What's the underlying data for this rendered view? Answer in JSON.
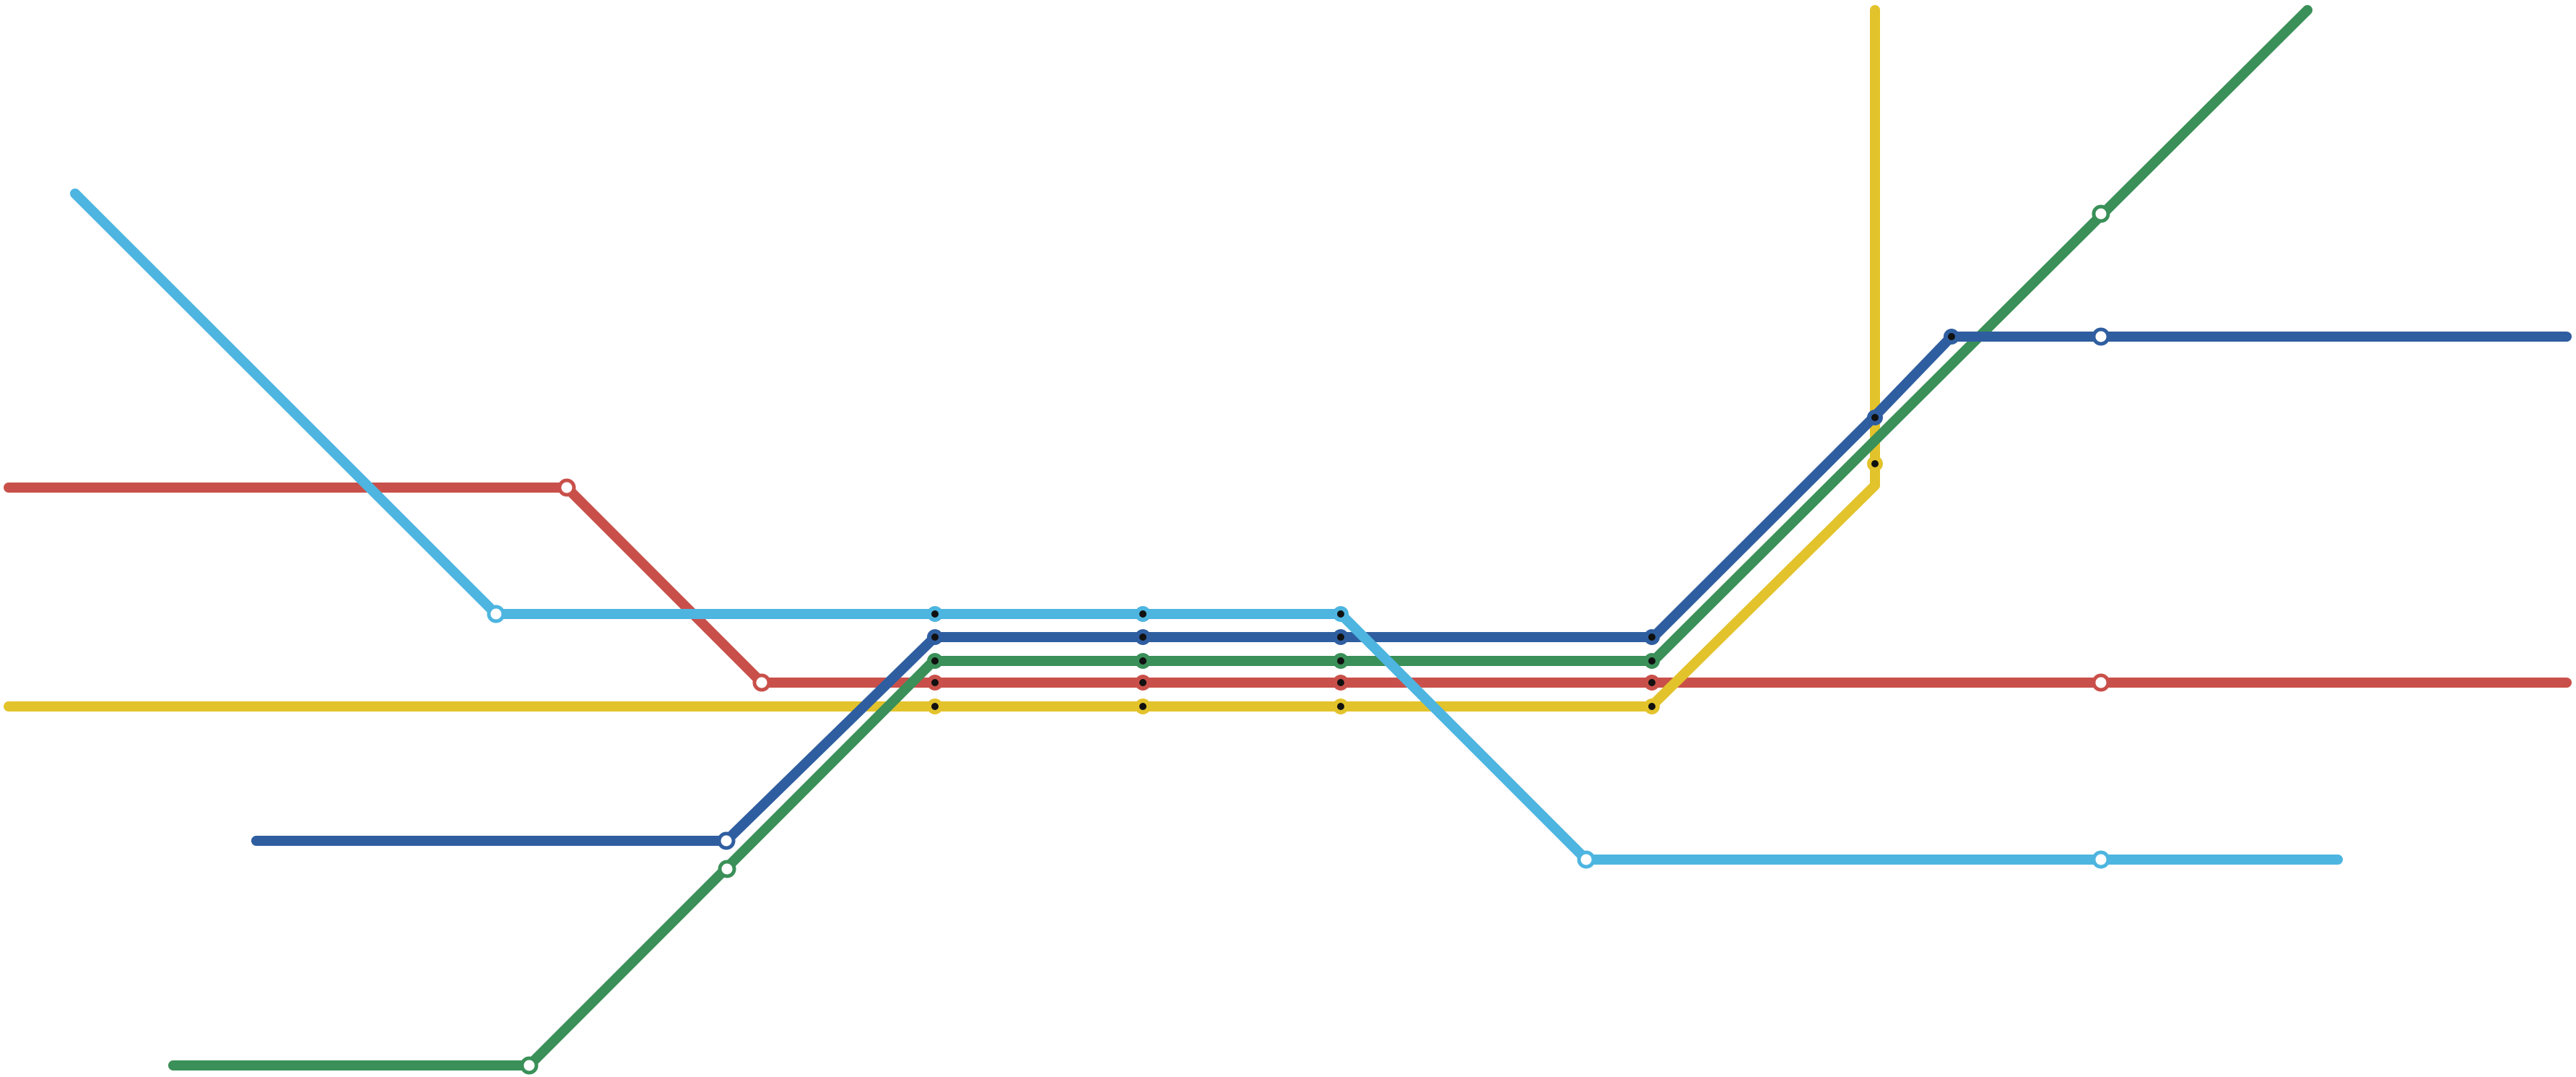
{
  "map": {
    "background": "#ffffff",
    "lines": [
      {
        "id": "red",
        "color": "#c9504a"
      },
      {
        "id": "yellow",
        "color": "#e3c32b"
      },
      {
        "id": "light-blue",
        "color": "#4db5e0"
      },
      {
        "id": "dark-blue",
        "color": "#2f5ea0"
      },
      {
        "id": "green",
        "color": "#3a9058"
      }
    ]
  }
}
